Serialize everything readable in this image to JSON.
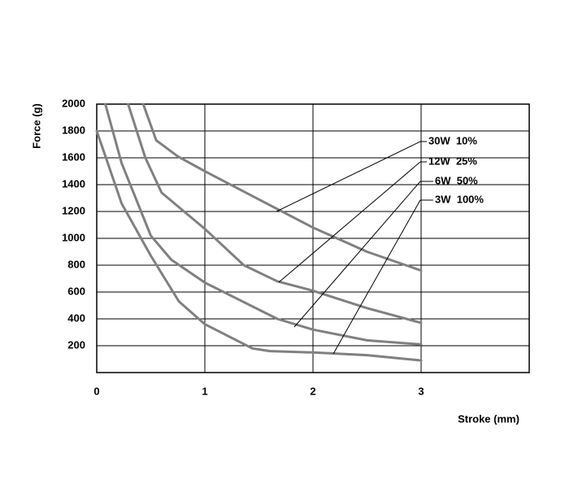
{
  "chart_data": {
    "type": "line",
    "xlabel": "Stroke (mm)",
    "ylabel": "Force (g)",
    "xlim": [
      0,
      4
    ],
    "xticks": [
      0,
      1,
      2,
      3
    ],
    "ylim": [
      0,
      2000
    ],
    "yticks": [
      200,
      400,
      600,
      800,
      1000,
      1200,
      1400,
      1600,
      1800,
      2000
    ],
    "grid": true,
    "series": [
      {
        "name": "30W  10%",
        "color": "#808080",
        "x": [
          0.43,
          0.55,
          0.75,
          1,
          1.5,
          2,
          2.5,
          3
        ],
        "values": [
          2000,
          1730,
          1610,
          1500,
          1290,
          1080,
          900,
          760
        ]
      },
      {
        "name": "12W  25%",
        "color": "#808080",
        "x": [
          0.29,
          0.45,
          0.6,
          1,
          1.36,
          1.67,
          2,
          2.5,
          3
        ],
        "values": [
          2000,
          1600,
          1340,
          1070,
          800,
          680,
          610,
          480,
          370
        ]
      },
      {
        "name": "6W  50%",
        "color": "#808080",
        "x": [
          0.08,
          0.23,
          0.5,
          0.69,
          1,
          1.67,
          2,
          2.5,
          3
        ],
        "values": [
          2000,
          1560,
          1020,
          840,
          670,
          400,
          320,
          240,
          210
        ]
      },
      {
        "name": "3W  100%",
        "color": "#808080",
        "x": [
          0,
          0.23,
          0.5,
          0.76,
          1,
          1.44,
          1.6,
          2,
          2.5,
          3
        ],
        "values": [
          1800,
          1260,
          870,
          530,
          360,
          180,
          160,
          150,
          130,
          90
        ]
      }
    ]
  }
}
